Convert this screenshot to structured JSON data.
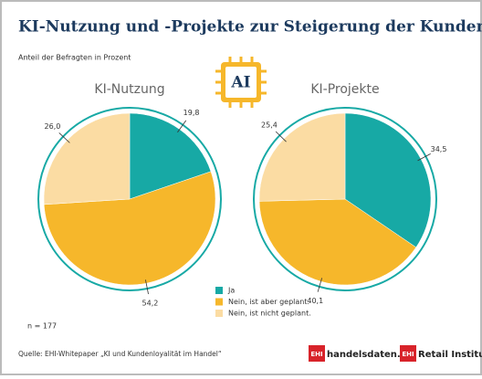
{
  "title": "KI-Nutzung und -Projekte zur Steigerung der Kundenloyalität",
  "subtitle": "Anteil der Befragten in Prozent",
  "icon_label": "AI",
  "legend": {
    "labels": [
      "Ja",
      "Nein, ist aber geplant.",
      "Nein, ist nicht geplant."
    ],
    "colors": [
      "#17a9a5",
      "#f6b72b",
      "#fbdca3"
    ]
  },
  "note": "n = 177",
  "source": "Quelle: EHI-Whitepaper „KI und Kundenloyalität im Handel“",
  "logos": {
    "badge1": "EHI",
    "name1": "handelsdaten.de",
    "badge2": "EHI",
    "name2": "Retail Institute"
  },
  "chart_data": [
    {
      "type": "pie",
      "title": "KI-Nutzung",
      "values": [
        19.8,
        54.2,
        26.0
      ],
      "value_labels": [
        "19,8",
        "54,2",
        "26,0"
      ]
    },
    {
      "type": "pie",
      "title": "KI-Projekte",
      "values": [
        34.5,
        40.1,
        25.4
      ],
      "value_labels": [
        "34,5",
        "40,1",
        "25,4"
      ]
    }
  ]
}
